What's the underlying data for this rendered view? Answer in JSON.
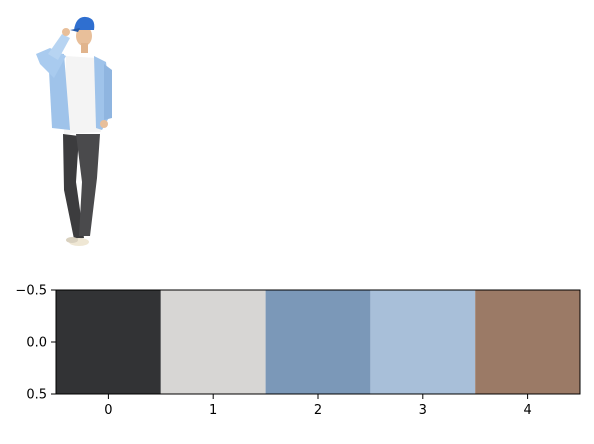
{
  "photo": {
    "icon": "person-photo-icon",
    "cap_color": "#2f6fd0",
    "shirt_color": "#9fc3ea",
    "tee_color": "#f4f4f4",
    "pants_color": "#4a4a4c",
    "skin_color": "#e8bf9a",
    "shoe_color": "#efe7d4"
  },
  "chart_data": {
    "type": "heatmap",
    "title": "",
    "xlabel": "",
    "ylabel": "",
    "x": [
      0,
      1,
      2,
      3,
      4
    ],
    "xlim": [
      -0.5,
      4.5
    ],
    "ylim": [
      0.5,
      -0.5
    ],
    "x_ticks": [
      "0",
      "1",
      "2",
      "3",
      "4"
    ],
    "y_ticks": [
      "−0.5",
      "0.0",
      "0.5"
    ],
    "cells": [
      {
        "x": 0,
        "color": "#323335"
      },
      {
        "x": 1,
        "color": "#d7d6d4"
      },
      {
        "x": 2,
        "color": "#7b98b8"
      },
      {
        "x": 3,
        "color": "#a8bfd9"
      },
      {
        "x": 4,
        "color": "#9b7a66"
      }
    ],
    "grid": false,
    "legend": "none"
  }
}
